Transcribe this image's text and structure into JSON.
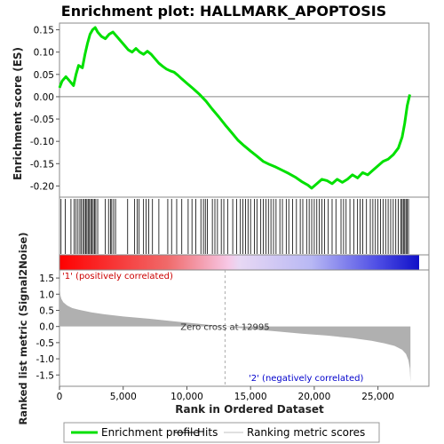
{
  "chart_data": {
    "type": "line",
    "title": "Enrichment plot: HALLMARK_APOPTOSIS",
    "es_panel": {
      "ylabel": "Enrichment score (ES)",
      "ylim": [
        -0.225,
        0.165
      ],
      "yticks": [
        "0.15",
        "0.10",
        "0.05",
        "0.00",
        "-0.05",
        "-0.10",
        "-0.15",
        "-0.20"
      ],
      "ytick_values": [
        0.15,
        0.1,
        0.05,
        0.0,
        -0.05,
        -0.1,
        -0.15,
        -0.2
      ],
      "series": [
        {
          "name": "Enrichment profile",
          "color": "#00e000",
          "x": [
            0,
            200,
            500,
            800,
            1100,
            1300,
            1500,
            1800,
            2000,
            2200,
            2400,
            2600,
            2800,
            3000,
            3300,
            3600,
            3900,
            4200,
            4500,
            4800,
            5100,
            5400,
            5700,
            6000,
            6300,
            6600,
            6900,
            7200,
            7500,
            7800,
            8100,
            8400,
            8700,
            9000,
            9300,
            9600,
            10000,
            10500,
            11000,
            11500,
            12000,
            12500,
            13000,
            13500,
            14000,
            14500,
            15000,
            15500,
            16000,
            16500,
            17000,
            17500,
            18000,
            18500,
            19000,
            19500,
            19800,
            20200,
            20600,
            21000,
            21400,
            21800,
            22200,
            22600,
            23000,
            23400,
            23800,
            24200,
            24600,
            25000,
            25400,
            25800,
            26200,
            26600,
            26900,
            27100,
            27300,
            27500
          ],
          "y": [
            0.02,
            0.035,
            0.045,
            0.035,
            0.025,
            0.05,
            0.07,
            0.065,
            0.095,
            0.12,
            0.14,
            0.15,
            0.155,
            0.145,
            0.135,
            0.13,
            0.14,
            0.145,
            0.135,
            0.125,
            0.115,
            0.105,
            0.1,
            0.108,
            0.1,
            0.095,
            0.102,
            0.095,
            0.085,
            0.075,
            0.068,
            0.062,
            0.058,
            0.055,
            0.048,
            0.04,
            0.03,
            0.018,
            0.005,
            -0.01,
            -0.028,
            -0.045,
            -0.063,
            -0.08,
            -0.097,
            -0.11,
            -0.122,
            -0.133,
            -0.145,
            -0.152,
            -0.158,
            -0.165,
            -0.172,
            -0.18,
            -0.19,
            -0.198,
            -0.205,
            -0.195,
            -0.185,
            -0.188,
            -0.195,
            -0.185,
            -0.192,
            -0.185,
            -0.175,
            -0.182,
            -0.17,
            -0.175,
            -0.165,
            -0.155,
            -0.145,
            -0.14,
            -0.13,
            -0.115,
            -0.09,
            -0.06,
            -0.02,
            0.005
          ]
        }
      ]
    },
    "rank_panel": {
      "ylabel": "Ranked list metric (Signal2Noise)",
      "xlabel": "Rank in Ordered Dataset",
      "xlim": [
        0,
        29000
      ],
      "xticks": [
        "0",
        "5,000",
        "10,000",
        "15,000",
        "20,000",
        "25,000"
      ],
      "xtick_values": [
        0,
        5000,
        10000,
        15000,
        20000,
        25000
      ],
      "ylim": [
        -1.85,
        1.75
      ],
      "yticks": [
        "1.5",
        "1.0",
        "0.5",
        "0.0",
        "-0.5",
        "-1.0",
        "-1.5"
      ],
      "ytick_values": [
        1.5,
        1.0,
        0.5,
        0.0,
        -0.5,
        -1.0,
        -1.5
      ],
      "metric_x": [
        0,
        30,
        80,
        150,
        300,
        600,
        1000,
        1500,
        2500,
        3500,
        5000,
        7000,
        9000,
        11000,
        12995,
        15000,
        17000,
        19000,
        21000,
        23000,
        24500,
        25500,
        26300,
        26900,
        27200,
        27400,
        27500,
        27550
      ],
      "metric_y": [
        1.62,
        1.15,
        0.95,
        0.85,
        0.75,
        0.65,
        0.57,
        0.52,
        0.44,
        0.38,
        0.31,
        0.24,
        0.16,
        0.08,
        0.0,
        -0.08,
        -0.15,
        -0.22,
        -0.28,
        -0.36,
        -0.44,
        -0.52,
        -0.6,
        -0.72,
        -0.85,
        -1.05,
        -1.3,
        -1.72
      ],
      "metric_color": "#b0b0b0",
      "zero_cross_rank": 12995,
      "zero_cross_label": "Zero cross at 12995",
      "pos_label": "'1' (positively correlated)",
      "pos_color": "#cc0000",
      "neg_label": "'2' (negatively correlated)",
      "neg_color": "#0000cc"
    },
    "hits": [
      120,
      450,
      900,
      1150,
      1300,
      1450,
      1600,
      1700,
      1850,
      1950,
      2050,
      2150,
      2250,
      2350,
      2450,
      2550,
      2650,
      2750,
      2850,
      3000,
      3600,
      3850,
      4000,
      4100,
      4250,
      4400,
      5350,
      5900,
      6100,
      6250,
      6600,
      6800,
      7000,
      7300,
      7800,
      8500,
      8800,
      9200,
      9600,
      10100,
      10400,
      10700,
      11100,
      11300,
      11450,
      11600,
      12000,
      12200,
      12400,
      12700,
      12900,
      13200,
      13600,
      13900,
      14200,
      14400,
      14600,
      14800,
      15000,
      15300,
      15500,
      15800,
      16000,
      16200,
      16400,
      16600,
      16800,
      17000,
      17300,
      17500,
      17800,
      18000,
      18300,
      18600,
      18900,
      19100,
      19400,
      19600,
      19800,
      20000,
      20200,
      20400,
      20600,
      20800,
      21100,
      21400,
      21700,
      22100,
      22300,
      22500,
      22800,
      23100,
      23400,
      23600,
      23800,
      24100,
      24400,
      24600,
      24800,
      25000,
      25200,
      25400,
      25600,
      25800,
      26000,
      26200,
      26400,
      26600,
      26800,
      26900,
      27000,
      27100,
      27200,
      27300,
      27400
    ],
    "legend": [
      {
        "label": "Enrichment profile",
        "color": "#00e000",
        "kind": "thick-line"
      },
      {
        "label": "Hits",
        "color": "#000000",
        "kind": "thin-line"
      },
      {
        "label": "Ranking metric scores",
        "color": "#c0c0c0",
        "kind": "light-line"
      }
    ]
  }
}
